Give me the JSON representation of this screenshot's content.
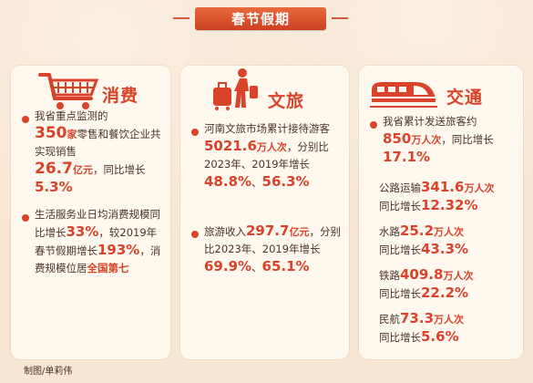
{
  "banner": {
    "title": "春节假期"
  },
  "consumption": {
    "title": "消费",
    "p1": {
      "t1": "我省重点监测的",
      "n1": "350",
      "u1": "家",
      "t2": "零售和餐饮企业共实现销售",
      "n2": "26.7",
      "u2": "亿元",
      "t3": "，同比增长",
      "n3": "5.3%"
    },
    "p2": {
      "t1": "生活服务业日均消费规模同比增长",
      "n1": "33%",
      "t2": "，较2019年春节假期增长",
      "n2": "193%",
      "t3": "，消费规模位居",
      "n3": "全国第七"
    }
  },
  "tourism": {
    "title": "文旅",
    "p1": {
      "t1": "河南文旅市场累计接待游客",
      "n1": "5021.6",
      "u1": "万人次",
      "t2": "，分别比2023年、2019年增长",
      "n2": "48.8%",
      "t3": "、",
      "n3": "56.3%"
    },
    "p2": {
      "t1": "旅游收入",
      "n1": "297.7",
      "u1": "亿元",
      "t2": "，分别比2023年、2019年增长",
      "n2": "69.9%",
      "t3": "、",
      "n3": "65.1%"
    }
  },
  "transport": {
    "title": "交通",
    "p1": {
      "t1": "我省累计发送旅客约",
      "n1": "850",
      "u1": "万人次",
      "t2": "，同比增长",
      "n2": "17.1%"
    },
    "road": {
      "t1": "公路运输",
      "n1": "341.6",
      "u1": "万人次",
      "t2": "同比增长",
      "n2": "12.32%"
    },
    "water": {
      "t1": "水路",
      "n1": "25.2",
      "u1": "万人次",
      "t2": "同比增长",
      "n2": "43.3%"
    },
    "rail": {
      "t1": "铁路",
      "n1": "409.8",
      "u1": "万人次",
      "t2": "同比增长",
      "n2": "22.2%"
    },
    "air": {
      "t1": "民航",
      "n1": "73.3",
      "u1": "万人次",
      "t2": "同比增长",
      "n2": "5.6%"
    }
  },
  "caption": "制图/单莉伟",
  "colors": {
    "accent": "#d9432a",
    "card": "#fff8ef",
    "background": "#f7e6d3"
  }
}
